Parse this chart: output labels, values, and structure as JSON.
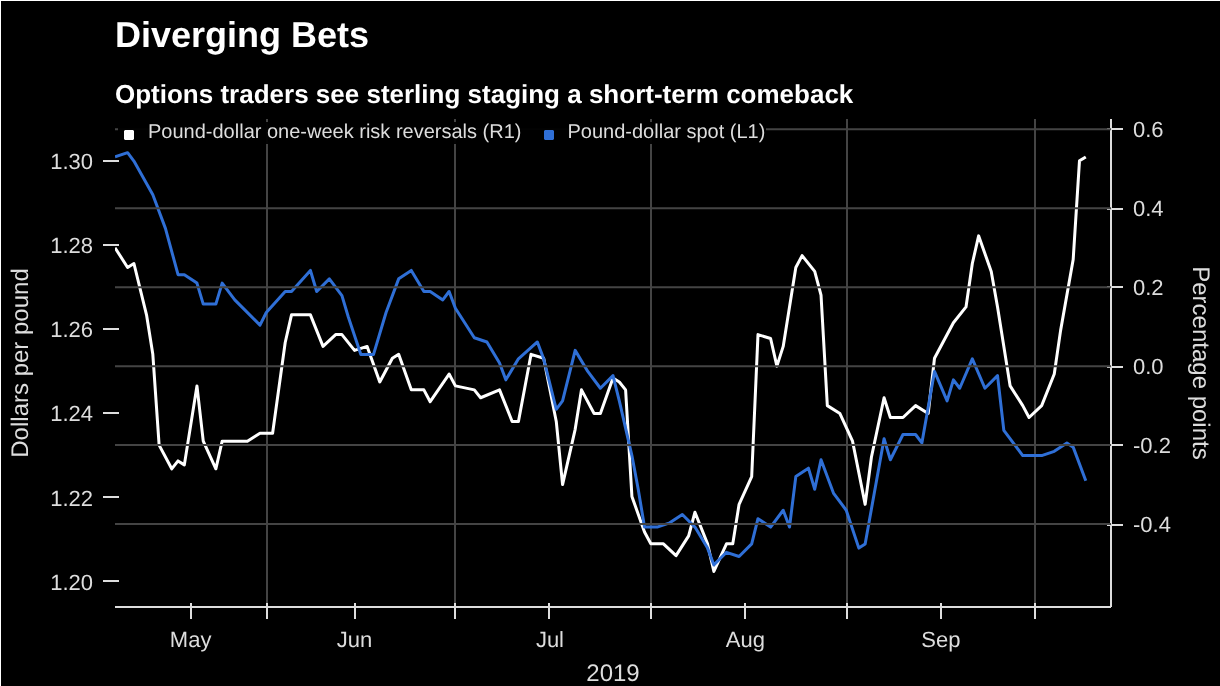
{
  "chart_data": {
    "type": "line",
    "title": "Diverging Bets",
    "subtitle": "Options traders see sterling staging a short-term comeback",
    "xlabel": "2019",
    "ylabel": "Dollars per pound",
    "y2label": "Percentage points",
    "series": [
      {
        "name": "Pound-dollar one-week risk reversals (R1)",
        "color": "#ffffff",
        "axis": "y2",
        "x": [
          "2019-05-08",
          "2019-05-10",
          "2019-05-11",
          "2019-05-13",
          "2019-05-14",
          "2019-05-15",
          "2019-05-17",
          "2019-05-18",
          "2019-05-19",
          "2019-05-21",
          "2019-05-22",
          "2019-05-24",
          "2019-05-25",
          "2019-05-27",
          "2019-05-29",
          "2019-05-31",
          "2019-06-02",
          "2019-06-04",
          "2019-06-05",
          "2019-06-07",
          "2019-06-08",
          "2019-06-10",
          "2019-06-12",
          "2019-06-13",
          "2019-06-15",
          "2019-06-17",
          "2019-06-19",
          "2019-06-21",
          "2019-06-22",
          "2019-06-24",
          "2019-06-26",
          "2019-06-27",
          "2019-06-30",
          "2019-07-01",
          "2019-07-04",
          "2019-07-05",
          "2019-07-08",
          "2019-07-10",
          "2019-07-11",
          "2019-07-13",
          "2019-07-15",
          "2019-07-17",
          "2019-07-18",
          "2019-07-20",
          "2019-07-21",
          "2019-07-23",
          "2019-07-24",
          "2019-07-26",
          "2019-07-27",
          "2019-07-28",
          "2019-07-29",
          "2019-07-31",
          "2019-08-01",
          "2019-08-03",
          "2019-08-05",
          "2019-08-07",
          "2019-08-08",
          "2019-08-10",
          "2019-08-11",
          "2019-08-13",
          "2019-08-14",
          "2019-08-15",
          "2019-08-17",
          "2019-08-18",
          "2019-08-20",
          "2019-08-21",
          "2019-08-22",
          "2019-08-24",
          "2019-08-25",
          "2019-08-27",
          "2019-08-28",
          "2019-08-29",
          "2019-08-31",
          "2019-09-02",
          "2019-09-04",
          "2019-09-05",
          "2019-09-07",
          "2019-09-08",
          "2019-09-10",
          "2019-09-12",
          "2019-09-14",
          "2019-09-15",
          "2019-09-18",
          "2019-09-20",
          "2019-09-21",
          "2019-09-22",
          "2019-09-24",
          "2019-09-25",
          "2019-09-27",
          "2019-09-29",
          "2019-09-30",
          "2019-10-02",
          "2019-10-04",
          "2019-10-05",
          "2019-10-07",
          "2019-10-08",
          "2019-10-09"
        ],
        "values": [
          0.3,
          0.25,
          0.26,
          0.13,
          0.03,
          -0.2,
          -0.26,
          -0.24,
          -0.25,
          -0.05,
          -0.19,
          -0.26,
          -0.19,
          -0.19,
          -0.19,
          -0.17,
          -0.17,
          0.06,
          0.13,
          0.13,
          0.13,
          0.05,
          0.08,
          0.08,
          0.04,
          0.05,
          -0.04,
          0.02,
          0.03,
          -0.06,
          -0.06,
          -0.09,
          -0.02,
          -0.05,
          -0.06,
          -0.08,
          -0.06,
          -0.14,
          -0.14,
          0.03,
          0.02,
          -0.14,
          -0.3,
          -0.16,
          -0.06,
          -0.12,
          -0.12,
          -0.03,
          -0.04,
          -0.06,
          -0.33,
          -0.42,
          -0.45,
          -0.45,
          -0.48,
          -0.43,
          -0.37,
          -0.45,
          -0.52,
          -0.45,
          -0.45,
          -0.35,
          -0.28,
          0.08,
          0.07,
          0.0,
          0.05,
          0.25,
          0.28,
          0.24,
          0.18,
          -0.1,
          -0.12,
          -0.19,
          -0.35,
          -0.23,
          -0.08,
          -0.13,
          -0.13,
          -0.1,
          -0.12,
          0.02,
          0.11,
          0.15,
          0.26,
          0.33,
          0.24,
          0.15,
          -0.05,
          -0.1,
          -0.13,
          -0.1,
          -0.02,
          0.09,
          0.27,
          0.52,
          0.53
        ]
      },
      {
        "name": "Pound-dollar spot (L1)",
        "color": "#2f6fd6",
        "x": [
          "2019-05-08",
          "2019-05-10",
          "2019-05-11",
          "2019-05-14",
          "2019-05-16",
          "2019-05-18",
          "2019-05-19",
          "2019-05-21",
          "2019-05-22",
          "2019-05-24",
          "2019-05-25",
          "2019-05-27",
          "2019-05-31",
          "2019-06-01",
          "2019-06-04",
          "2019-06-05",
          "2019-06-08",
          "2019-06-09",
          "2019-06-11",
          "2019-06-13",
          "2019-06-14",
          "2019-06-16",
          "2019-06-18",
          "2019-06-20",
          "2019-06-22",
          "2019-06-24",
          "2019-06-26",
          "2019-06-27",
          "2019-06-29",
          "2019-06-30",
          "2019-07-01",
          "2019-07-04",
          "2019-07-06",
          "2019-07-08",
          "2019-07-09",
          "2019-07-11",
          "2019-07-14",
          "2019-07-15",
          "2019-07-17",
          "2019-07-18",
          "2019-07-20",
          "2019-07-22",
          "2019-07-24",
          "2019-07-26",
          "2019-07-27",
          "2019-07-29",
          "2019-07-30",
          "2019-07-31",
          "2019-08-02",
          "2019-08-04",
          "2019-08-06",
          "2019-08-08",
          "2019-08-10",
          "2019-08-11",
          "2019-08-13",
          "2019-08-15",
          "2019-08-17",
          "2019-08-18",
          "2019-08-20",
          "2019-08-22",
          "2019-08-23",
          "2019-08-24",
          "2019-08-26",
          "2019-08-27",
          "2019-08-28",
          "2019-08-30",
          "2019-09-01",
          "2019-09-03",
          "2019-09-04",
          "2019-09-07",
          "2019-09-08",
          "2019-09-10",
          "2019-09-12",
          "2019-09-13",
          "2019-09-15",
          "2019-09-17",
          "2019-09-18",
          "2019-09-19",
          "2019-09-21",
          "2019-09-23",
          "2019-09-25",
          "2019-09-26",
          "2019-09-29",
          "2019-10-02",
          "2019-10-04",
          "2019-10-06",
          "2019-10-07",
          "2019-10-09"
        ],
        "values": [
          1.301,
          1.302,
          1.3,
          1.292,
          1.284,
          1.273,
          1.273,
          1.271,
          1.266,
          1.266,
          1.271,
          1.267,
          1.261,
          1.264,
          1.269,
          1.269,
          1.274,
          1.269,
          1.272,
          1.268,
          1.263,
          1.254,
          1.254,
          1.264,
          1.272,
          1.274,
          1.269,
          1.269,
          1.267,
          1.269,
          1.265,
          1.258,
          1.257,
          1.252,
          1.248,
          1.253,
          1.257,
          1.253,
          1.241,
          1.243,
          1.255,
          1.25,
          1.246,
          1.249,
          1.243,
          1.23,
          1.222,
          1.213,
          1.213,
          1.214,
          1.216,
          1.213,
          1.208,
          1.204,
          1.207,
          1.206,
          1.209,
          1.215,
          1.213,
          1.217,
          1.213,
          1.225,
          1.227,
          1.222,
          1.229,
          1.221,
          1.217,
          1.208,
          1.209,
          1.234,
          1.229,
          1.235,
          1.235,
          1.233,
          1.25,
          1.243,
          1.248,
          1.246,
          1.253,
          1.246,
          1.249,
          1.236,
          1.23,
          1.23,
          1.231,
          1.233,
          1.232,
          1.224
        ]
      }
    ],
    "xlim": [
      "2019-05-08",
      "2019-10-13"
    ],
    "xticks": [
      {
        "value": "2019-05-20",
        "label": "May"
      },
      {
        "value": "2019-06-01",
        "label": null
      },
      {
        "value": "2019-06-15",
        "label": "Jun"
      },
      {
        "value": "2019-07-01",
        "label": null
      },
      {
        "value": "2019-07-16",
        "label": "Jul"
      },
      {
        "value": "2019-08-01",
        "label": null
      },
      {
        "value": "2019-08-16",
        "label": "Aug"
      },
      {
        "value": "2019-09-01",
        "label": null
      },
      {
        "value": "2019-09-16",
        "label": "Sep"
      },
      {
        "value": "2019-10-01",
        "label": null
      }
    ],
    "ylim": [
      1.194,
      1.31
    ],
    "yticks": [
      {
        "value": 1.2,
        "label": "1.20"
      },
      {
        "value": 1.22,
        "label": "1.22"
      },
      {
        "value": 1.24,
        "label": "1.24"
      },
      {
        "value": 1.26,
        "label": "1.26"
      },
      {
        "value": 1.28,
        "label": "1.28"
      },
      {
        "value": 1.3,
        "label": "1.30"
      }
    ],
    "y2lim": [
      -0.61,
      0.626
    ],
    "y2ticks": [
      {
        "value": -0.4,
        "label": "-0.4"
      },
      {
        "value": -0.2,
        "label": "-0.2"
      },
      {
        "value": 0,
        "label": "0.0"
      },
      {
        "value": 0.2,
        "label": "0.2"
      },
      {
        "value": 0.4,
        "label": "0.4"
      },
      {
        "value": 0.6,
        "label": "0.6"
      }
    ],
    "grid": true,
    "legend": "top left",
    "line_style": "solid",
    "marker": "none"
  }
}
